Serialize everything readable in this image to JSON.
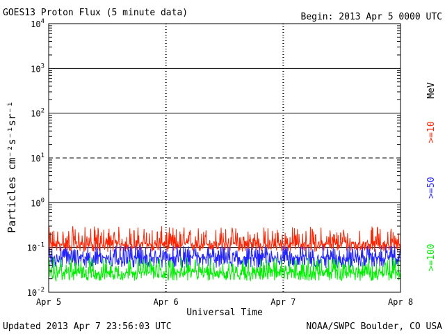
{
  "header": {
    "title": "GOES13 Proton Flux (5 minute data)",
    "begin": "Begin: 2013 Apr 5 0000 UTC"
  },
  "footer": {
    "updated": "Updated 2013 Apr  7 23:56:03 UTC",
    "credit": "NOAA/SWPC Boulder, CO USA"
  },
  "chart_data": {
    "type": "line",
    "title": "GOES13 Proton Flux (5 minute data)",
    "xlabel": "Universal Time",
    "ylabel": "Particles cm⁻²s⁻¹sr⁻¹",
    "x_ticks": [
      "Apr 5",
      "Apr 6",
      "Apr 7",
      "Apr 8"
    ],
    "x_range": [
      "2013-04-05 00:00",
      "2013-04-08 00:00"
    ],
    "y_scale": "log",
    "ylim": [
      0.01,
      10000
    ],
    "y_ticks": [
      {
        "base": "10",
        "exp": "-2"
      },
      {
        "base": "10",
        "exp": "-1"
      },
      {
        "base": "10",
        "exp": "0"
      },
      {
        "base": "10",
        "exp": "1"
      },
      {
        "base": "10",
        "exp": "2"
      },
      {
        "base": "10",
        "exp": "3"
      },
      {
        "base": "10",
        "exp": "4"
      }
    ],
    "legend_unit": "MeV",
    "series": [
      {
        "name": ">=10",
        "color": "#ff2200",
        "mean": 0.12,
        "range": [
          0.08,
          0.3
        ]
      },
      {
        "name": ">=50",
        "color": "#2222ff",
        "mean": 0.06,
        "range": [
          0.035,
          0.11
        ]
      },
      {
        "name": ">=100",
        "color": "#00ee00",
        "mean": 0.028,
        "range": [
          0.018,
          0.06
        ]
      }
    ]
  }
}
